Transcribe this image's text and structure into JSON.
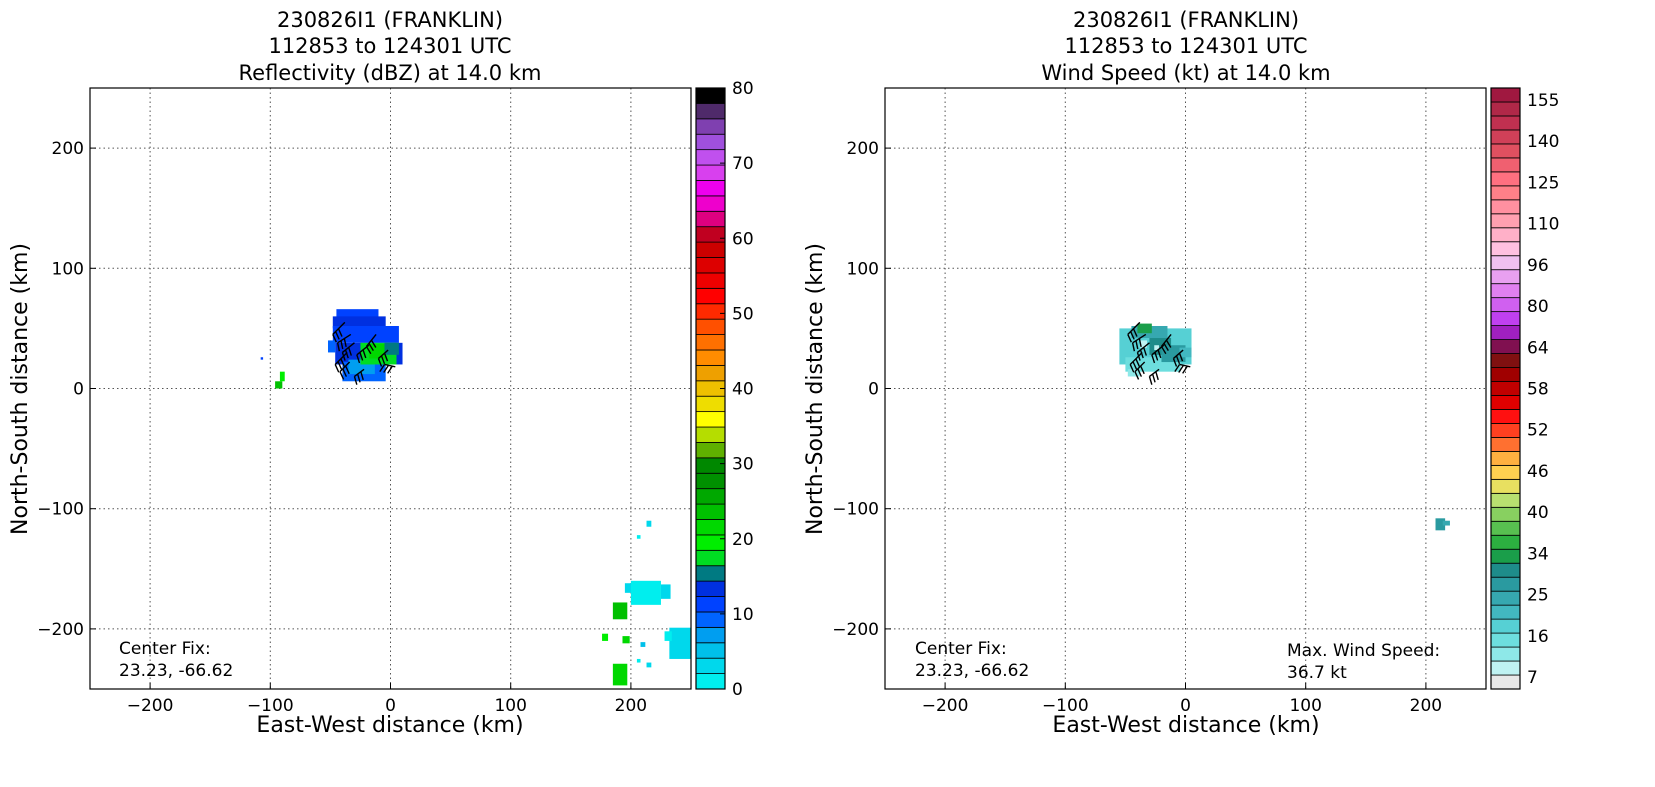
{
  "panels": [
    {
      "title_lines": [
        "230826I1 (FRANKLIN)",
        "112853 to 124301 UTC",
        "Reflectivity (dBZ) at 14.0 km"
      ],
      "xlabel": "East-West distance (km)",
      "ylabel": "North-South distance (km)",
      "center_fix_label": "Center Fix:",
      "center_fix_value": "23.23, -66.62",
      "max_wind_label": "",
      "max_wind_value": ""
    },
    {
      "title_lines": [
        "230826I1 (FRANKLIN)",
        "112853 to 124301 UTC",
        "Wind Speed (kt) at 14.0 km"
      ],
      "xlabel": "East-West distance (km)",
      "ylabel": "North-South distance (km)",
      "center_fix_label": "Center Fix:",
      "center_fix_value": "23.23, -66.62",
      "max_wind_label": "Max. Wind Speed:",
      "max_wind_value": "36.7 kt"
    }
  ],
  "chart_data": [
    {
      "type": "heatmap",
      "field": "Reflectivity (dBZ)",
      "xlim": [
        -250,
        250
      ],
      "ylim": [
        -250,
        250
      ],
      "xticks": [
        -200,
        -100,
        0,
        100,
        200
      ],
      "yticks": [
        -200,
        -100,
        0,
        100,
        200
      ],
      "xtick_labels": [
        "−200",
        "−100",
        "0",
        "100",
        "200"
      ],
      "ytick_labels": [
        "−200",
        "−100",
        "0",
        "100",
        "200"
      ],
      "grid": true,
      "colorbar": {
        "min": 0,
        "max": 80,
        "ticks": [
          0,
          10,
          20,
          30,
          40,
          50,
          60,
          70,
          80
        ],
        "tick_labels": [
          "0",
          "10",
          "20",
          "30",
          "40",
          "50",
          "60",
          "70",
          "80"
        ],
        "colors": [
          "#00eeee",
          "#00d8ec",
          "#00c0ea",
          "#009ef0",
          "#0064ff",
          "#0042ff",
          "#0030e0",
          "#007a82",
          "#00dd22",
          "#00ee00",
          "#00d800",
          "#00c000",
          "#00a800",
          "#009000",
          "#008800",
          "#5fb000",
          "#b5dd00",
          "#ffff00",
          "#eedd00",
          "#eec000",
          "#eea000",
          "#ff8c00",
          "#ff7000",
          "#ff5000",
          "#ff2a00",
          "#ff0000",
          "#ee0000",
          "#dd0000",
          "#cc0000",
          "#c00020",
          "#dd0080",
          "#ee00cc",
          "#ee00ee",
          "#d840ee",
          "#c050ee",
          "#a050dd",
          "#7f40b0",
          "#4f2a6a",
          "#000000"
        ]
      },
      "echoes": [
        {
          "x": -45,
          "y": 58,
          "w": 35,
          "h": 8,
          "v": 5
        },
        {
          "x": -48,
          "y": 50,
          "w": 44,
          "h": 10,
          "v": 6
        },
        {
          "x": -48,
          "y": 38,
          "w": 55,
          "h": 14,
          "v": 5
        },
        {
          "x": -46,
          "y": 20,
          "w": 56,
          "h": 18,
          "v": 6
        },
        {
          "x": -40,
          "y": 6,
          "w": 36,
          "h": 16,
          "v": 4
        },
        {
          "x": -35,
          "y": 12,
          "w": 22,
          "h": 12,
          "v": 3
        },
        {
          "x": -25,
          "y": 20,
          "w": 30,
          "h": 18,
          "v": 8
        },
        {
          "x": -18,
          "y": 25,
          "w": 14,
          "h": 12,
          "v": 10
        },
        {
          "x": -5,
          "y": 28,
          "w": 12,
          "h": 10,
          "v": 7
        },
        {
          "x": -52,
          "y": 30,
          "w": 6,
          "h": 10,
          "v": 4
        },
        {
          "x": -96,
          "y": 0,
          "w": 6,
          "h": 6,
          "v": 11
        },
        {
          "x": -92,
          "y": 6,
          "w": 4,
          "h": 8,
          "v": 9
        },
        {
          "x": -108,
          "y": 24,
          "w": 2,
          "h": 2,
          "v": 5
        },
        {
          "x": 213,
          "y": -115,
          "w": 4,
          "h": 5,
          "v": 1
        },
        {
          "x": 205,
          "y": -125,
          "w": 3,
          "h": 3,
          "v": 0
        },
        {
          "x": 195,
          "y": -170,
          "w": 12,
          "h": 8,
          "v": 1
        },
        {
          "x": 200,
          "y": -180,
          "w": 25,
          "h": 20,
          "v": 0
        },
        {
          "x": 225,
          "y": -175,
          "w": 8,
          "h": 12,
          "v": 1
        },
        {
          "x": 185,
          "y": -192,
          "w": 12,
          "h": 14,
          "v": 11
        },
        {
          "x": 176,
          "y": -210,
          "w": 5,
          "h": 6,
          "v": 9
        },
        {
          "x": 193,
          "y": -212,
          "w": 6,
          "h": 6,
          "v": 10
        },
        {
          "x": 232,
          "y": -225,
          "w": 18,
          "h": 26,
          "v": 1
        },
        {
          "x": 228,
          "y": -210,
          "w": 6,
          "h": 8,
          "v": 0
        },
        {
          "x": 208,
          "y": -215,
          "w": 4,
          "h": 4,
          "v": 2
        },
        {
          "x": 205,
          "y": -228,
          "w": 3,
          "h": 3,
          "v": 0
        },
        {
          "x": 185,
          "y": -247,
          "w": 12,
          "h": 18,
          "v": 10
        },
        {
          "x": 213,
          "y": -232,
          "w": 4,
          "h": 4,
          "v": 1
        }
      ]
    },
    {
      "type": "heatmap",
      "field": "Wind Speed (kt)",
      "xlim": [
        -250,
        250
      ],
      "ylim": [
        -250,
        250
      ],
      "xticks": [
        -200,
        -100,
        0,
        100,
        200
      ],
      "yticks": [
        -200,
        -100,
        0,
        100,
        200
      ],
      "xtick_labels": [
        "−200",
        "−100",
        "0",
        "100",
        "200"
      ],
      "ytick_labels": [
        "−200",
        "−100",
        "0",
        "100",
        "200"
      ],
      "grid": true,
      "max_wind_kt": 36.7,
      "colorbar": {
        "ticks": [
          "7",
          "16",
          "25",
          "34",
          "40",
          "46",
          "52",
          "58",
          "64",
          "80",
          "96",
          "110",
          "125",
          "140",
          "155"
        ],
        "colors": [
          "#e8e8e8",
          "#bff2f2",
          "#8ee8e8",
          "#6ddede",
          "#56d0d4",
          "#42b8c0",
          "#36a8b0",
          "#2a9aa0",
          "#1e8c8a",
          "#1a9e4a",
          "#2cb040",
          "#58c050",
          "#88d060",
          "#b8e070",
          "#e8e060",
          "#ffd050",
          "#ffb040",
          "#ff7030",
          "#ff4020",
          "#ff1010",
          "#e00000",
          "#c00000",
          "#a00000",
          "#801010",
          "#801050",
          "#a020c0",
          "#c040f0",
          "#d060f0",
          "#e080f0",
          "#e8a0f0",
          "#f0c0f0",
          "#ffc0e0",
          "#ffb0c8",
          "#ffa0b0",
          "#ff90a0",
          "#ff8088",
          "#ff7080",
          "#f06070",
          "#e05060",
          "#d04058",
          "#c03050",
          "#b02848",
          "#a01840"
        ]
      },
      "echoes": [
        {
          "x": -55,
          "y": 20,
          "w": 60,
          "h": 30,
          "v": 4
        },
        {
          "x": -50,
          "y": 14,
          "w": 46,
          "h": 12,
          "v": 3
        },
        {
          "x": -45,
          "y": 42,
          "w": 30,
          "h": 10,
          "v": 6
        },
        {
          "x": -40,
          "y": 46,
          "w": 12,
          "h": 8,
          "v": 9
        },
        {
          "x": -30,
          "y": 28,
          "w": 18,
          "h": 14,
          "v": 8
        },
        {
          "x": -20,
          "y": 22,
          "w": 20,
          "h": 14,
          "v": 7
        },
        {
          "x": -5,
          "y": 26,
          "w": 10,
          "h": 8,
          "v": 5
        },
        {
          "x": -48,
          "y": 10,
          "w": 10,
          "h": 6,
          "v": 2
        },
        {
          "x": -38,
          "y": 34,
          "w": 6,
          "h": 6,
          "v": 1
        },
        {
          "x": -26,
          "y": 32,
          "w": 4,
          "h": 4,
          "v": 1
        },
        {
          "x": 208,
          "y": -118,
          "w": 8,
          "h": 10,
          "v": 7
        },
        {
          "x": 214,
          "y": -114,
          "w": 6,
          "h": 4,
          "v": 6
        }
      ]
    }
  ]
}
